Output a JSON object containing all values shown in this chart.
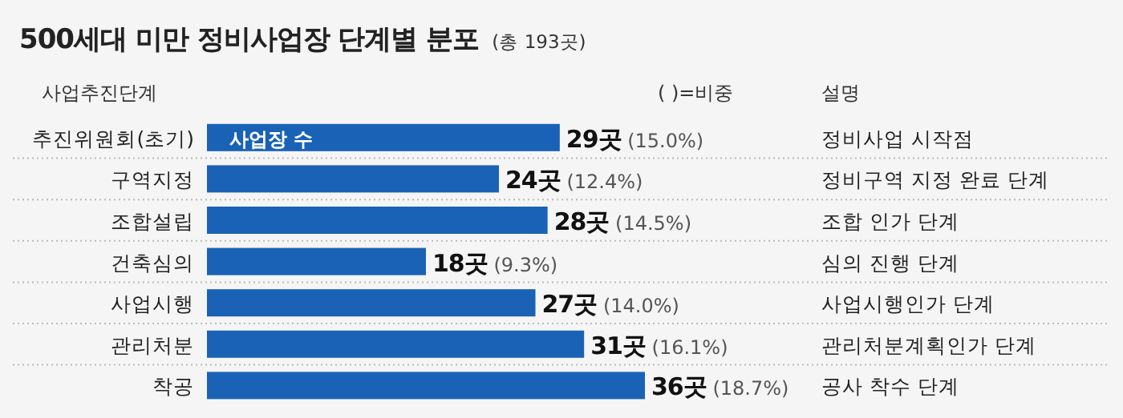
{
  "chart_data": {
    "type": "bar",
    "orientation": "horizontal",
    "title": "500세대 미만 정비사업장 단계별 분포",
    "subtitle": "(총 193곳)",
    "ylabel": "사업추진단계",
    "categories": [
      "추진위원회(초기)",
      "구역지정",
      "조합설립",
      "건축심의",
      "사업시행",
      "관리처분",
      "착공"
    ],
    "series": [
      {
        "name": "사업장 수",
        "color": "#1a62b6",
        "values": [
          29,
          24,
          28,
          18,
          27,
          31,
          36
        ],
        "value_labels": [
          "**29곳** (15.0%)",
          "**24곳** (12.4%)",
          "**28곳** (14.5%)",
          "**18곳** (9.3%)",
          "**27곳** (14.0%)",
          "**31곳** (16.1%)",
          "**36곳** (18.7%)"
        ]
      }
    ],
    "legend": "top left",
    "annotations": [
      "( )=비중",
      "설명",
      "정비사업 시작점",
      "정비구역 지정 완료 단계",
      "조합 인가 단계",
      "심의 진행 단계",
      "사업시행인가 단계",
      "관리처분계획인가 단계",
      "공사 착수 단계"
    ]
  }
}
